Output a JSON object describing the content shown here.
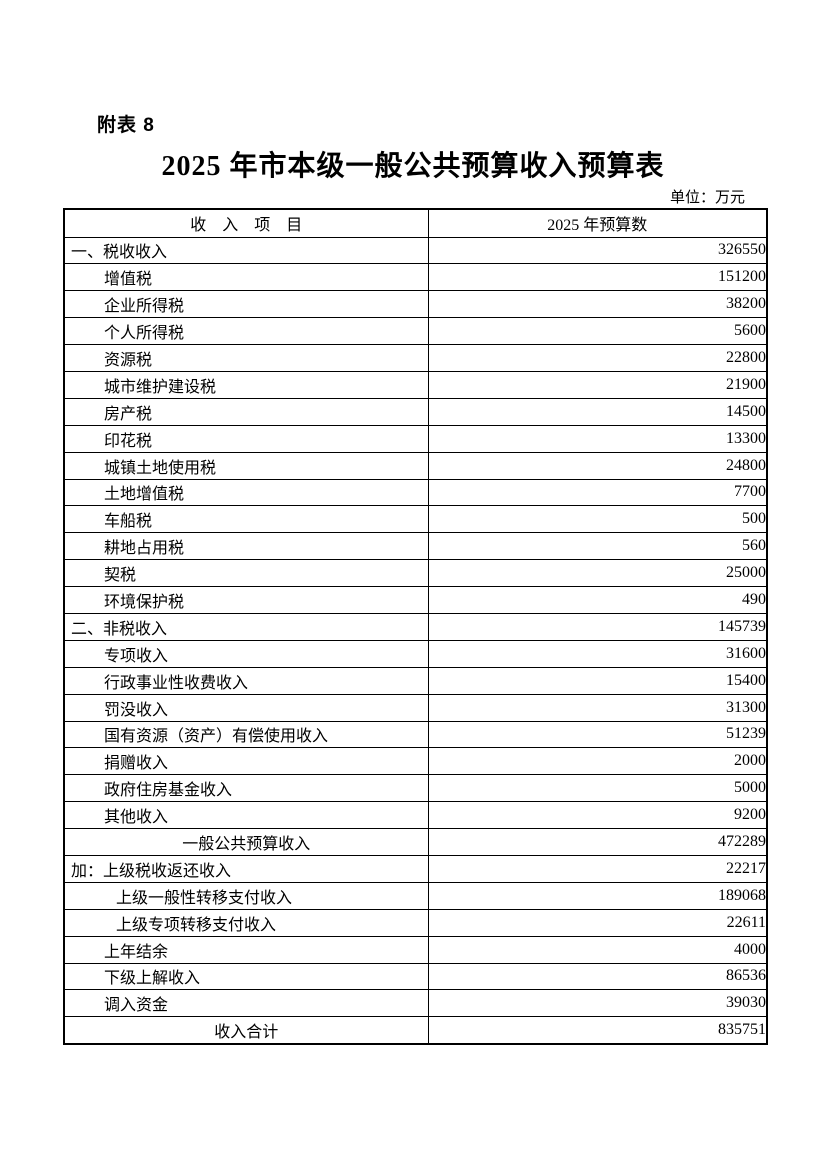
{
  "header": {
    "annex_label": "附表 8",
    "title": "2025 年市本级一般公共预算收入预算表",
    "unit_label": "单位：万元"
  },
  "table": {
    "columns": [
      {
        "label": "收　入　项　目"
      },
      {
        "label": "2025 年预算数"
      }
    ],
    "rows": [
      {
        "label": "一、税收收入",
        "value": "326550",
        "indent": 0,
        "align": "left"
      },
      {
        "label": "增值税",
        "value": "151200",
        "indent": 1,
        "align": "left"
      },
      {
        "label": "企业所得税",
        "value": "38200",
        "indent": 1,
        "align": "left"
      },
      {
        "label": "个人所得税",
        "value": "5600",
        "indent": 1,
        "align": "left"
      },
      {
        "label": "资源税",
        "value": "22800",
        "indent": 1,
        "align": "left"
      },
      {
        "label": "城市维护建设税",
        "value": "21900",
        "indent": 1,
        "align": "left"
      },
      {
        "label": "房产税",
        "value": "14500",
        "indent": 1,
        "align": "left"
      },
      {
        "label": "印花税",
        "value": "13300",
        "indent": 1,
        "align": "left"
      },
      {
        "label": "城镇土地使用税",
        "value": "24800",
        "indent": 1,
        "align": "left"
      },
      {
        "label": "土地增值税",
        "value": "7700",
        "indent": 1,
        "align": "left"
      },
      {
        "label": "车船税",
        "value": "500",
        "indent": 1,
        "align": "left"
      },
      {
        "label": "耕地占用税",
        "value": "560",
        "indent": 1,
        "align": "left"
      },
      {
        "label": "契税",
        "value": "25000",
        "indent": 1,
        "align": "left"
      },
      {
        "label": "环境保护税",
        "value": "490",
        "indent": 1,
        "align": "left"
      },
      {
        "label": "二、非税收入",
        "value": "145739",
        "indent": 0,
        "align": "left"
      },
      {
        "label": "专项收入",
        "value": "31600",
        "indent": 1,
        "align": "left"
      },
      {
        "label": "行政事业性收费收入",
        "value": "15400",
        "indent": 1,
        "align": "left"
      },
      {
        "label": "罚没收入",
        "value": "31300",
        "indent": 1,
        "align": "left"
      },
      {
        "label": "国有资源（资产）有偿使用收入",
        "value": "51239",
        "indent": 1,
        "align": "left"
      },
      {
        "label": "捐赠收入",
        "value": "2000",
        "indent": 1,
        "align": "left"
      },
      {
        "label": "政府住房基金收入",
        "value": "5000",
        "indent": 1,
        "align": "left"
      },
      {
        "label": "其他收入",
        "value": "9200",
        "indent": 1,
        "align": "left"
      },
      {
        "label": "一般公共预算收入",
        "value": "472289",
        "indent": 0,
        "align": "center"
      },
      {
        "label": "加：上级税收返还收入",
        "value": "22217",
        "indent": 0,
        "align": "left"
      },
      {
        "label": "上级一般性转移支付收入",
        "value": "189068",
        "indent": 2,
        "align": "left"
      },
      {
        "label": "上级专项转移支付收入",
        "value": "22611",
        "indent": 2,
        "align": "left"
      },
      {
        "label": "上年结余",
        "value": "4000",
        "indent": 1,
        "align": "left"
      },
      {
        "label": "下级上解收入",
        "value": "86536",
        "indent": 1,
        "align": "left"
      },
      {
        "label": "调入资金",
        "value": "39030",
        "indent": 1,
        "align": "left"
      },
      {
        "label": "收入合计",
        "value": "835751",
        "indent": 0,
        "align": "center"
      }
    ]
  },
  "colors": {
    "text": "#000000",
    "background": "#ffffff",
    "border": "#000000"
  }
}
